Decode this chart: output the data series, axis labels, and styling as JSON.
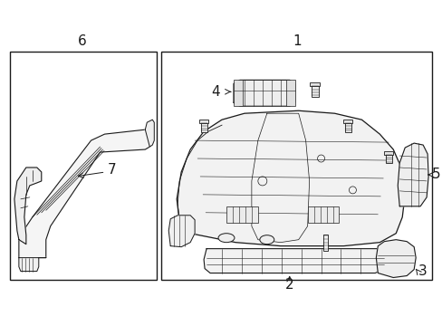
{
  "bg_color": "#ffffff",
  "line_color": "#1a1a1a",
  "fig_width": 4.89,
  "fig_height": 3.6,
  "dpi": 100,
  "label_fontsize": 11
}
